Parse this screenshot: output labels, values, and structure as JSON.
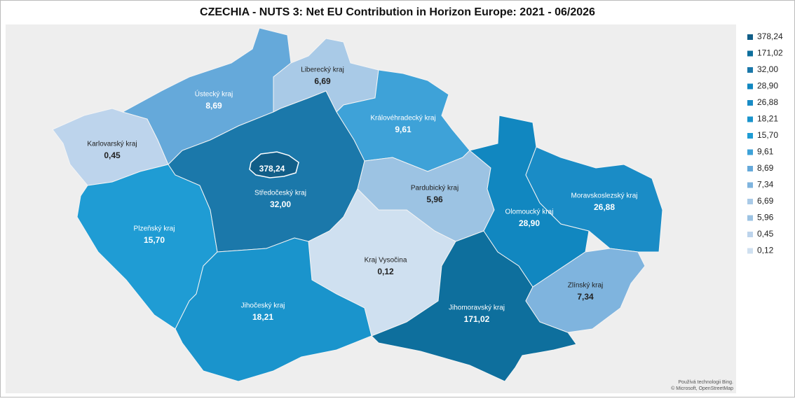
{
  "title": "CZECHIA - NUTS 3: Net EU Contribution in Horizon Europe: 2021 - 06/2026",
  "regions": [
    {
      "value": 378.24,
      "value_label": "378,24",
      "color": "#115e88"
    },
    {
      "name": "Jihomoravský kraj",
      "value": 171.02,
      "value_label": "171,02",
      "color": "#0e6f9d"
    },
    {
      "name": "Středočeský kraj",
      "value": 32.0,
      "value_label": "32,00",
      "color": "#1b78aa"
    },
    {
      "name": "Olomoucký kraj",
      "value": 28.9,
      "value_label": "28,90",
      "color": "#1187c0"
    },
    {
      "name": "Moravskoslezský kraj",
      "value": 26.88,
      "value_label": "26,88",
      "color": "#1a8cc6"
    },
    {
      "name": "Jihočeský kraj",
      "value": 18.21,
      "value_label": "18,21",
      "color": "#1a94cc"
    },
    {
      "name": "Plzeňský kraj",
      "value": 15.7,
      "value_label": "15,70",
      "color": "#1f9cd4"
    },
    {
      "name": "Královéhradecký kraj",
      "value": 9.61,
      "value_label": "9,61",
      "color": "#3ea2d8"
    },
    {
      "name": "Ústecký kraj",
      "value": 8.69,
      "value_label": "8,69",
      "color": "#65a9da"
    },
    {
      "name": "Zlínský kraj",
      "value": 7.34,
      "value_label": "7,34",
      "color": "#7fb4de"
    },
    {
      "name": "Liberecký kraj",
      "value": 6.69,
      "value_label": "6,69",
      "color": "#a9cae7"
    },
    {
      "name": "Pardubický kraj",
      "value": 5.96,
      "value_label": "5,96",
      "color": "#9cc3e3"
    },
    {
      "name": "Karlovarský kraj",
      "value": 0.45,
      "value_label": "0,45",
      "color": "#bdd4ec"
    },
    {
      "name": "Kraj Vysočina",
      "value": 0.12,
      "value_label": "0,12",
      "color": "#cfe0f0"
    }
  ],
  "attribution": [
    "Používá technologii Bing.",
    "© Microsoft, OpenStreetMap"
  ]
}
